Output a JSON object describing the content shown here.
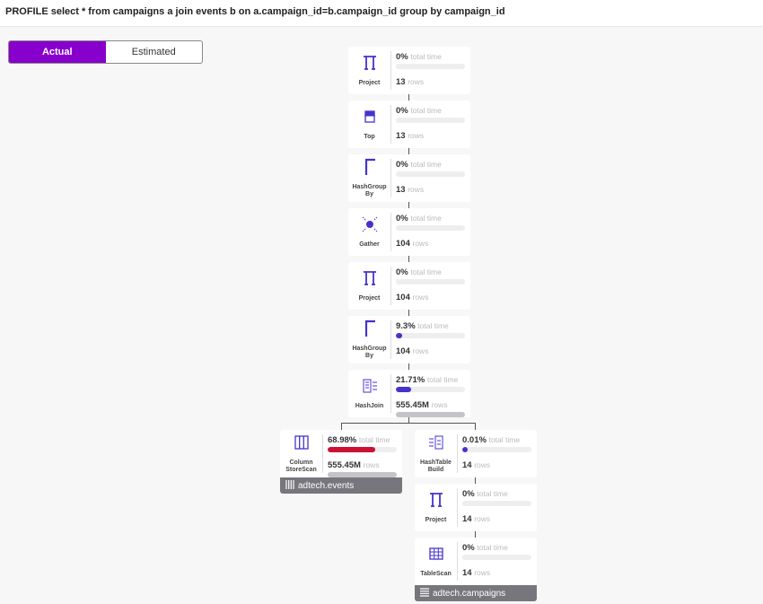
{
  "query": "PROFILE select * from campaigns a join events b on a.campaign_id=b.campaign_id group by campaign_id",
  "toggle": {
    "actual": "Actual",
    "estimated": "Estimated",
    "selected": "Actual"
  },
  "colors": {
    "accent": "#8800cc",
    "time_bar": "#4433cc",
    "hot_bar": "#cc1133",
    "rows_bar": "#c4c4c8",
    "icon": "#4433cc"
  },
  "nodes": [
    {
      "label": "Project",
      "icon": "pi-icon",
      "time": "0%",
      "time_fraction": 0,
      "rows": "13",
      "rows_fraction": 0
    },
    {
      "label": "Top",
      "icon": "top-icon",
      "time": "0%",
      "time_fraction": 0,
      "rows": "13",
      "rows_fraction": 0
    },
    {
      "label": "HashGroup By",
      "icon": "hashgroup-icon",
      "time": "0%",
      "time_fraction": 0,
      "rows": "13",
      "rows_fraction": 0
    },
    {
      "label": "Gather",
      "icon": "gather-icon",
      "time": "0%",
      "time_fraction": 0,
      "rows": "104",
      "rows_fraction": 0
    },
    {
      "label": "Project",
      "icon": "pi-icon",
      "time": "0%",
      "time_fraction": 0,
      "rows": "104",
      "rows_fraction": 0
    },
    {
      "label": "HashGroup By",
      "icon": "hashgroup-icon",
      "time": "9.3%",
      "time_fraction": 0.093,
      "rows": "104",
      "rows_fraction": 0
    },
    {
      "label": "HashJoin",
      "icon": "hashjoin-icon",
      "time": "21.71%",
      "time_fraction": 0.2171,
      "rows": "555.45M",
      "rows_fraction": 1
    },
    {
      "label": "Column StoreScan",
      "icon": "columnstore-icon",
      "time": "68.98%",
      "time_fraction": 0.6898,
      "rows": "555.45M",
      "rows_fraction": 1,
      "footer": "adtech.events",
      "footer_icon": "columnstore-table-icon",
      "hot": true
    },
    {
      "label": "HashTable Build",
      "icon": "hashtable-icon",
      "time": "0.01%",
      "time_fraction": 0.0001,
      "rows": "14",
      "rows_fraction": 0
    },
    {
      "label": "Project",
      "icon": "pi-icon",
      "time": "0%",
      "time_fraction": 0,
      "rows": "14",
      "rows_fraction": 0
    },
    {
      "label": "TableScan",
      "icon": "tablescan-icon",
      "time": "0%",
      "time_fraction": 0,
      "rows": "14",
      "rows_fraction": 0,
      "footer": "adtech.campaigns",
      "footer_icon": "rowstore-table-icon"
    }
  ],
  "units": {
    "time": "total time",
    "rows": "rows"
  }
}
